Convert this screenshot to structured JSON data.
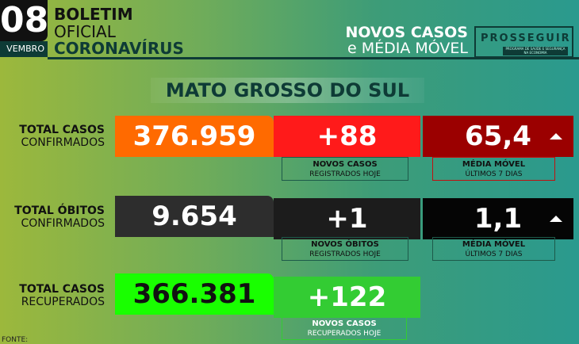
{
  "header": {
    "day": "08",
    "month": "VEMBRO",
    "line1": "BOLETIM",
    "line2": "OFICIAL",
    "line3": "CORONAVÍRUS",
    "right_line1": "NOVOS CASOS",
    "right_line2": "e MÉDIA MÓVEL",
    "logo": "PROSSEGUIR",
    "logo_sub": "PROGRAMA DE SAÚDE E SEGURANÇA NA ECONOMIA"
  },
  "title": "MATO GROSSO DO SUL",
  "rows": [
    {
      "label1": "TOTAL CASOS",
      "label2": "CONFIRMADOS",
      "total": "376.959",
      "new": "+88",
      "new_cap1": "NOVOS CASOS",
      "new_cap2": "REGISTRADOS HOJE",
      "avg": "65,4",
      "avg_cap1": "MÉDIA MÓVEL",
      "avg_cap2": "ÚLTIMOS 7 DIAS",
      "trend": "up"
    },
    {
      "label1": "TOTAL ÓBITOS",
      "label2": "CONFIRMADOS",
      "total": "9.654",
      "new": "+1",
      "new_cap1": "NOVOS ÓBITOS",
      "new_cap2": "REGISTRADOS HOJE",
      "avg": "1,1",
      "avg_cap1": "MÉDIA MÓVEL",
      "avg_cap2": "ÚLTIMOS 7 DIAS",
      "trend": "up"
    },
    {
      "label1": "TOTAL CASOS",
      "label2": "RECUPERADOS",
      "total": "366.381",
      "new": "+122",
      "new_cap1": "NOVOS CASOS",
      "new_cap2": "RECUPERADOS HOJE"
    }
  ],
  "footer": {
    "source": "FONTE:"
  },
  "colors": {
    "cases_total": "#ff6a00",
    "cases_new": "#ff1a1a",
    "cases_avg": "#9b0000",
    "deaths_total": "#2d2d2d",
    "deaths_new": "#1c1c1c",
    "deaths_avg": "#050505",
    "rec_total": "#19ff00",
    "rec_new": "#33cc33"
  }
}
